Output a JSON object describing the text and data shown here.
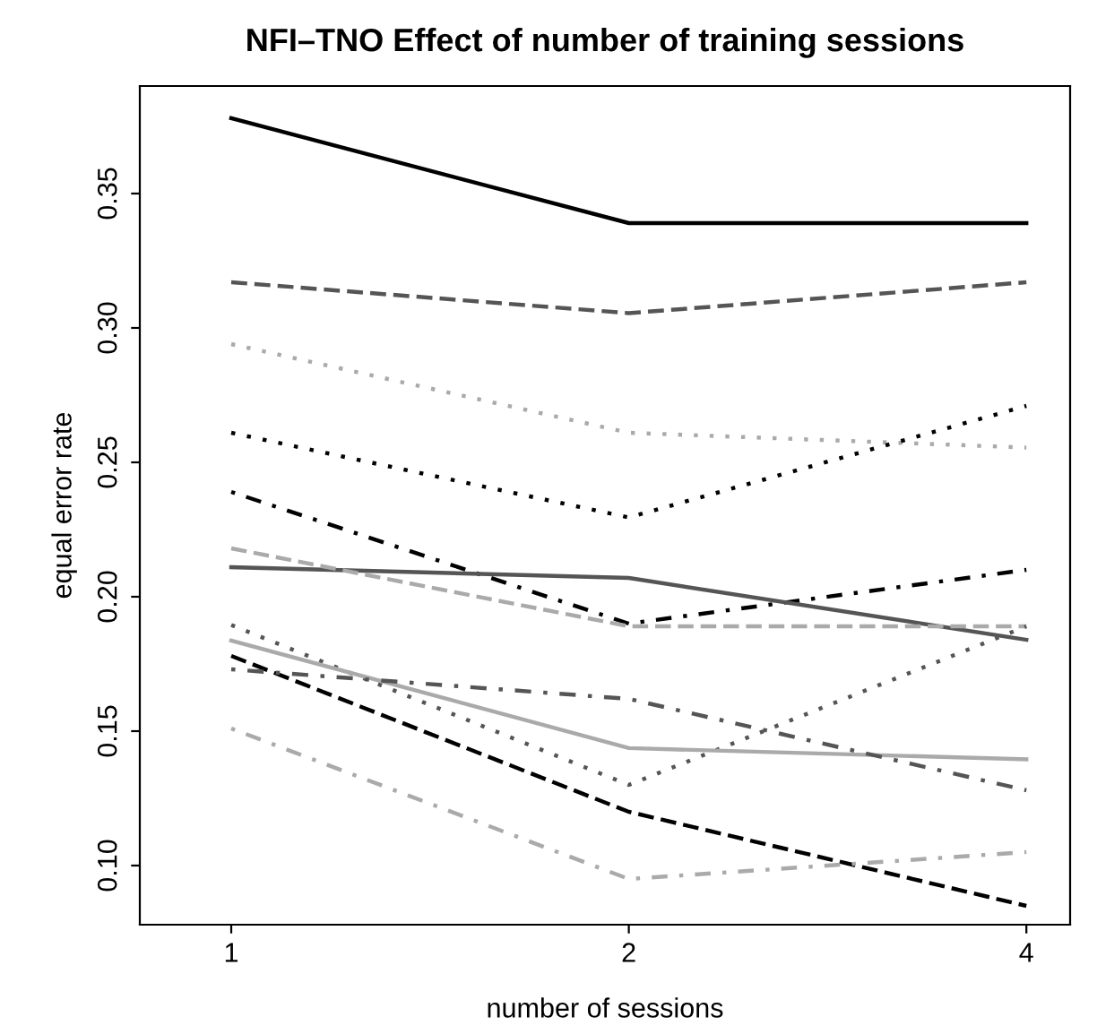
{
  "chart_data": {
    "type": "line",
    "title": "NFI–TNO Effect of number of training sessions",
    "xlabel": "number of sessions",
    "ylabel": "equal error rate",
    "categories": [
      "1",
      "2",
      "4"
    ],
    "ylim": [
      0.078,
      0.39
    ],
    "yticks": [
      {
        "value": 0.1,
        "label": "0.10"
      },
      {
        "value": 0.15,
        "label": "0.15"
      },
      {
        "value": 0.2,
        "label": "0.20"
      },
      {
        "value": 0.25,
        "label": "0.25"
      },
      {
        "value": 0.3,
        "label": "0.30"
      },
      {
        "value": 0.35,
        "label": "0.35"
      }
    ],
    "grid": false,
    "legend": false,
    "marker": "none",
    "series": [
      {
        "color": "#000000",
        "line_style": "solid",
        "values": [
          0.378,
          0.339,
          0.339
        ]
      },
      {
        "color": "#555555",
        "line_style": "dashed",
        "values": [
          0.317,
          0.3055,
          0.317
        ]
      },
      {
        "color": "#aaaaaa",
        "line_style": "dotted",
        "values": [
          0.294,
          0.261,
          0.2555
        ]
      },
      {
        "color": "#000000",
        "line_style": "dotted",
        "values": [
          0.261,
          0.2295,
          0.271
        ]
      },
      {
        "color": "#000000",
        "line_style": "dashdot",
        "values": [
          0.239,
          0.19,
          0.21
        ]
      },
      {
        "color": "#555555",
        "line_style": "solid",
        "values": [
          0.211,
          0.207,
          0.184
        ]
      },
      {
        "color": "#aaaaaa",
        "line_style": "dashed",
        "values": [
          0.218,
          0.189,
          0.189
        ]
      },
      {
        "color": "#555555",
        "line_style": "dotted",
        "values": [
          0.1895,
          0.13,
          0.189
        ]
      },
      {
        "color": "#aaaaaa",
        "line_style": "solid",
        "values": [
          0.1837,
          0.1437,
          0.1395
        ]
      },
      {
        "color": "#000000",
        "line_style": "dashed",
        "values": [
          0.178,
          0.12,
          0.085
        ]
      },
      {
        "color": "#555555",
        "line_style": "dashdot",
        "values": [
          0.173,
          0.162,
          0.128
        ]
      },
      {
        "color": "#aaaaaa",
        "line_style": "dashdot",
        "values": [
          0.151,
          0.095,
          0.105
        ]
      }
    ]
  }
}
